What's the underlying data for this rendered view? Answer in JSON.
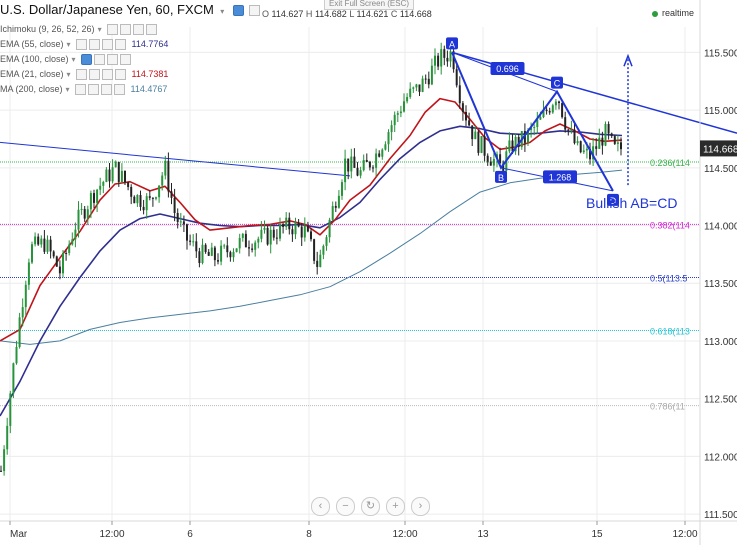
{
  "header": {
    "title": "U.S. Dollar/Japanese Yen, 60, FXCM",
    "title_caret": "▾",
    "ohlc": {
      "o_label": "O",
      "o": "114.627",
      "h_label": "H",
      "h": "114.682",
      "l_label": "L",
      "l": "114.621",
      "c_label": "C",
      "c": "114.668"
    },
    "exit_fullscreen": "Exit Full Screen (ESC)",
    "realtime": "realtime"
  },
  "indicators": [
    {
      "label": "Ichimoku (9, 26, 52, 26)",
      "value": "",
      "color": "#999999"
    },
    {
      "label": "EMA (55, close)",
      "value": "114.7764",
      "color": "#2f2f8f"
    },
    {
      "label": "EMA (100, close)",
      "value": "",
      "color": "#999999"
    },
    {
      "label": "EMA (21, close)",
      "value": "114.7381",
      "color": "#c0141b"
    },
    {
      "label": "MA (200, close)",
      "value": "114.4767",
      "color": "#4a7fa0"
    }
  ],
  "chart_data": {
    "type": "candlestick",
    "symbol": "USDJPY",
    "timeframe": "60",
    "y_axis": {
      "ticks": [
        "115.500",
        "115.000",
        "114.500",
        "114.000",
        "113.500",
        "113.000",
        "112.500",
        "112.000",
        "111.500"
      ],
      "ylim": [
        111.44,
        115.72
      ]
    },
    "x_axis": {
      "ticks": [
        "Mar",
        "12:00",
        "6",
        "8",
        "12:00",
        "13",
        "15",
        "12:00"
      ]
    },
    "last_price": "114.668",
    "fib_levels": [
      {
        "label": "0.236(114",
        "value": 114.55,
        "color": "#39b54a"
      },
      {
        "label": "0.382(114",
        "value": 114.01,
        "color": "#d62ad6"
      },
      {
        "label": "0.5(113.5",
        "value": 113.55,
        "color": "#2a3ec6"
      },
      {
        "label": "0.618(113",
        "value": 113.09,
        "color": "#27c5d6"
      },
      {
        "label": "0.786(11",
        "value": 112.44,
        "color": "#bbbbbb"
      }
    ],
    "abcd": {
      "points": [
        {
          "label": "A",
          "x": 452,
          "y": 115.5
        },
        {
          "label": "B",
          "x": 501,
          "y": 114.5
        },
        {
          "label": "C",
          "x": 557,
          "y": 115.16
        },
        {
          "label": "D",
          "x": 613,
          "y": 114.3
        }
      ],
      "ratios": [
        "0.696",
        "1.268"
      ],
      "note": "Bullish AB=CD"
    },
    "candles": [],
    "ema21": [
      [
        0,
        113.0
      ],
      [
        20,
        113.1
      ],
      [
        40,
        113.48
      ],
      [
        60,
        113.72
      ],
      [
        80,
        113.95
      ],
      [
        100,
        114.22
      ],
      [
        115,
        114.36
      ],
      [
        130,
        114.38
      ],
      [
        150,
        114.3
      ],
      [
        165,
        114.34
      ],
      [
        180,
        114.2
      ],
      [
        195,
        114.05
      ],
      [
        210,
        113.96
      ],
      [
        230,
        113.98
      ],
      [
        250,
        114.0
      ],
      [
        270,
        114.01
      ],
      [
        290,
        114.04
      ],
      [
        305,
        114.01
      ],
      [
        320,
        113.92
      ],
      [
        335,
        114.05
      ],
      [
        350,
        114.22
      ],
      [
        370,
        114.35
      ],
      [
        390,
        114.58
      ],
      [
        410,
        114.78
      ],
      [
        425,
        114.98
      ],
      [
        440,
        115.1
      ],
      [
        455,
        115.07
      ],
      [
        470,
        114.92
      ],
      [
        485,
        114.76
      ],
      [
        500,
        114.66
      ],
      [
        515,
        114.68
      ],
      [
        530,
        114.72
      ],
      [
        545,
        114.82
      ],
      [
        560,
        114.88
      ],
      [
        575,
        114.82
      ],
      [
        590,
        114.75
      ],
      [
        605,
        114.73
      ],
      [
        622,
        114.74
      ]
    ],
    "ema55": [
      [
        0,
        112.35
      ],
      [
        20,
        112.65
      ],
      [
        40,
        113.0
      ],
      [
        60,
        113.3
      ],
      [
        80,
        113.55
      ],
      [
        100,
        113.78
      ],
      [
        120,
        113.96
      ],
      [
        140,
        114.06
      ],
      [
        160,
        114.1
      ],
      [
        180,
        114.06
      ],
      [
        200,
        114.02
      ],
      [
        220,
        114.0
      ],
      [
        240,
        113.99
      ],
      [
        260,
        114.0
      ],
      [
        280,
        114.0
      ],
      [
        300,
        114.01
      ],
      [
        320,
        113.98
      ],
      [
        340,
        114.07
      ],
      [
        360,
        114.2
      ],
      [
        380,
        114.4
      ],
      [
        400,
        114.58
      ],
      [
        420,
        114.72
      ],
      [
        440,
        114.82
      ],
      [
        460,
        114.86
      ],
      [
        480,
        114.84
      ],
      [
        500,
        114.8
      ],
      [
        520,
        114.79
      ],
      [
        540,
        114.8
      ],
      [
        560,
        114.82
      ],
      [
        580,
        114.81
      ],
      [
        600,
        114.79
      ],
      [
        622,
        114.78
      ]
    ],
    "ma200": [
      [
        0,
        113.0
      ],
      [
        30,
        112.97
      ],
      [
        60,
        113.0
      ],
      [
        90,
        113.1
      ],
      [
        120,
        113.16
      ],
      [
        150,
        113.2
      ],
      [
        180,
        113.23
      ],
      [
        210,
        113.26
      ],
      [
        240,
        113.3
      ],
      [
        270,
        113.35
      ],
      [
        300,
        113.4
      ],
      [
        330,
        113.47
      ],
      [
        360,
        113.6
      ],
      [
        390,
        113.76
      ],
      [
        420,
        113.93
      ],
      [
        450,
        114.12
      ],
      [
        480,
        114.29
      ],
      [
        510,
        114.37
      ],
      [
        540,
        114.41
      ],
      [
        570,
        114.44
      ],
      [
        600,
        114.46
      ],
      [
        622,
        114.48
      ]
    ],
    "trendline": [
      [
        0,
        114.72
      ],
      [
        350,
        114.43
      ]
    ]
  },
  "colors": {
    "up": "#27933a",
    "down": "#222222",
    "pattern": "#1f35d6",
    "grid": "#ececec",
    "axis_text": "#333333"
  }
}
